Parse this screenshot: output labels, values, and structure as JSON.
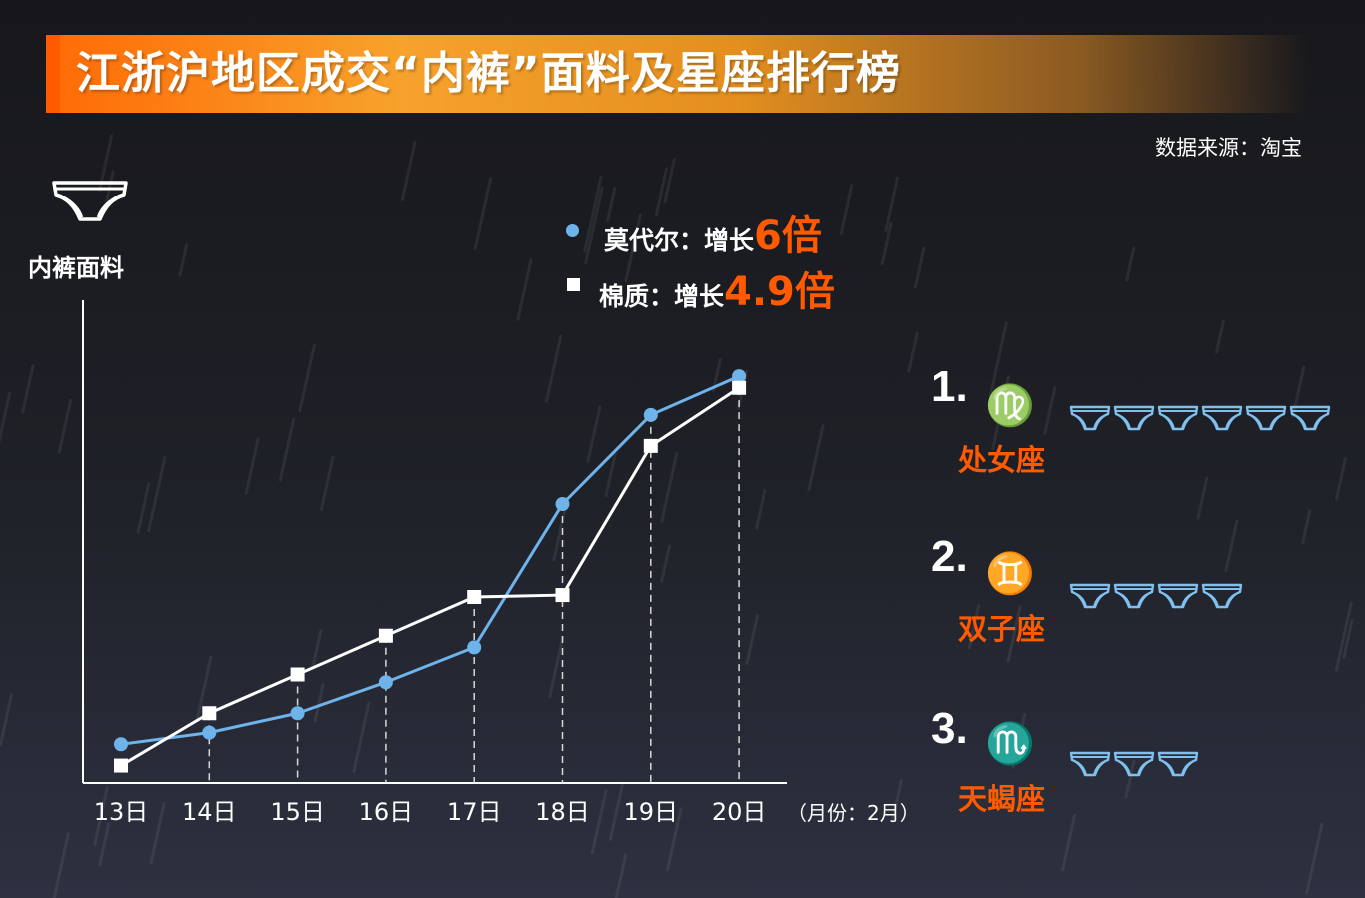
{
  "title": "江浙沪地区成交“内裤”面料及星座排行榜",
  "source": "数据来源：淘宝",
  "y_axis_label": "内裤面料",
  "legend": [
    {
      "label": "莫代尔：增长",
      "value": "6倍",
      "marker": "circle",
      "color": "#6eb4eb"
    },
    {
      "label": "棉质：增长",
      "value": "4.9倍",
      "marker": "square",
      "color": "#ffffff"
    }
  ],
  "x_unit_note": "（月份：2月）",
  "chart_data": {
    "type": "line",
    "categories": [
      "13日",
      "14日",
      "15日",
      "16日",
      "17日",
      "18日",
      "19日",
      "20日"
    ],
    "series": [
      {
        "name": "莫代尔",
        "color": "#6eb4eb",
        "marker": "circle",
        "values": [
          1.0,
          1.3,
          1.8,
          2.6,
          3.5,
          7.2,
          9.5,
          10.5
        ]
      },
      {
        "name": "棉质",
        "color": "#ffffff",
        "marker": "square",
        "values": [
          0.45,
          1.8,
          2.8,
          3.8,
          4.8,
          4.85,
          8.7,
          10.2
        ]
      }
    ],
    "ylim": [
      0,
      12
    ],
    "xlabel": "",
    "ylabel": "内裤面料",
    "dashed_drop_lines": true,
    "grid": false
  },
  "ranking": [
    {
      "rank": "1.",
      "symbol": "♍",
      "name": "处女座",
      "count": 6
    },
    {
      "rank": "2.",
      "symbol": "♊",
      "name": "双子座",
      "count": 4
    },
    {
      "rank": "3.",
      "symbol": "♏",
      "name": "天蝎座",
      "count": 3
    }
  ],
  "colors": {
    "accent": "#ff5a00",
    "modal": "#6eb4eb",
    "cotton": "#ffffff",
    "banner": "#f7a22c"
  },
  "icons": {
    "fabric": "underwear-icon"
  }
}
